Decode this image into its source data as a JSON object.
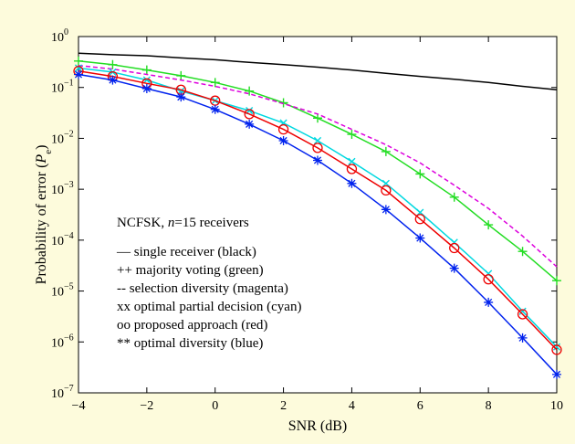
{
  "chart_data": {
    "type": "line",
    "xlabel": "SNR (dB)",
    "ylabel_prefix": "Probability of error (",
    "ylabel_symbol": "P",
    "ylabel_subscript": "e",
    "ylabel_suffix": ")",
    "xlim": [
      -4,
      10
    ],
    "ylim": [
      1e-07,
      1
    ],
    "yscale": "log",
    "grid": false,
    "x_ticks": [
      "−4",
      "−2",
      "0",
      "2",
      "4",
      "6",
      "8",
      "10"
    ],
    "y_ticks": [
      {
        "base": "10",
        "exp": "0"
      },
      {
        "base": "10",
        "exp": "−1"
      },
      {
        "base": "10",
        "exp": "−2"
      },
      {
        "base": "10",
        "exp": "−3"
      },
      {
        "base": "10",
        "exp": "−4"
      },
      {
        "base": "10",
        "exp": "−5"
      },
      {
        "base": "10",
        "exp": "−6"
      },
      {
        "base": "10",
        "exp": "−7"
      }
    ],
    "x": [
      -4,
      -3,
      -2,
      -1,
      0,
      1,
      2,
      3,
      4,
      5,
      6,
      7,
      8,
      9,
      10
    ],
    "series": [
      {
        "name": "single receiver",
        "color": "#000000",
        "marker": "none",
        "dash": "solid",
        "values": [
          0.47,
          0.44,
          0.42,
          0.38,
          0.35,
          0.31,
          0.28,
          0.25,
          0.22,
          0.19,
          0.165,
          0.145,
          0.125,
          0.105,
          0.09
        ]
      },
      {
        "name": "majority voting",
        "color": "#22dd22",
        "marker": "plus",
        "dash": "solid",
        "values": [
          0.33,
          0.28,
          0.22,
          0.17,
          0.125,
          0.085,
          0.05,
          0.025,
          0.012,
          0.0055,
          0.002,
          0.0007,
          0.0002,
          6e-05,
          1.6e-05
        ]
      },
      {
        "name": "selection diversity",
        "color": "#dd00dd",
        "marker": "none",
        "dash": "dashed",
        "values": [
          0.27,
          0.23,
          0.18,
          0.14,
          0.105,
          0.075,
          0.048,
          0.03,
          0.015,
          0.0075,
          0.0033,
          0.0012,
          0.00042,
          0.00012,
          3e-05
        ]
      },
      {
        "name": "optimal partial decision",
        "color": "#00d8e0",
        "marker": "x",
        "dash": "solid",
        "values": [
          0.24,
          0.2,
          0.14,
          0.085,
          0.055,
          0.035,
          0.02,
          0.009,
          0.0035,
          0.0013,
          0.00035,
          9e-05,
          2.2e-05,
          4e-06,
          8e-07
        ]
      },
      {
        "name": "proposed approach",
        "color": "#ee0000",
        "marker": "circle",
        "dash": "solid",
        "values": [
          0.21,
          0.165,
          0.12,
          0.09,
          0.055,
          0.03,
          0.015,
          0.0065,
          0.0025,
          0.00095,
          0.00026,
          7e-05,
          1.7e-05,
          3.5e-06,
          7e-07
        ]
      },
      {
        "name": "optimal diversity",
        "color": "#0022ee",
        "marker": "asterisk",
        "dash": "solid",
        "values": [
          0.18,
          0.14,
          0.095,
          0.065,
          0.037,
          0.019,
          0.009,
          0.0037,
          0.0013,
          0.0004,
          0.00011,
          2.8e-05,
          6e-06,
          1.2e-06,
          2.3e-07
        ]
      }
    ],
    "legend": {
      "header_prefix": "NCFSK, ",
      "header_italic": "n",
      "header_suffix": "=15 receivers",
      "entries": [
        "— single receiver (black)",
        "++ majority voting (green)",
        "-- selection diversity (magenta)",
        "xx optimal partial decision (cyan)",
        "oo proposed approach (red)",
        "** optimal diversity (blue)"
      ],
      "placement": "lower-left, inside axes"
    }
  }
}
